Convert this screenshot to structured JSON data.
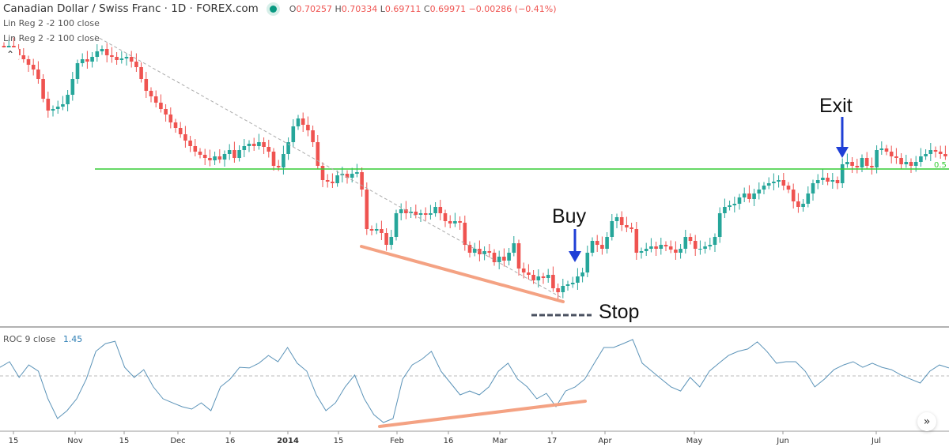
{
  "header": {
    "symbol": "Canadian Dollar / Swiss Franc · 1D · FOREX.com",
    "o_label": "O",
    "o": "0.70257",
    "h_label": "H",
    "h": "0.70334",
    "l_label": "L",
    "l": "0.69711",
    "c_label": "C",
    "c": "0.69971",
    "change": "−0.00286 (−0.41%)"
  },
  "indicators": {
    "linreg1": "Lin Reg 2 -2 100 close",
    "linreg2": "Lin Reg 2 -2 100 close",
    "roc_label": "ROC 9 close",
    "roc_value": "1.45"
  },
  "annotations": {
    "buy": "Buy",
    "exit": "Exit",
    "stop": "Stop",
    "level_label": "0.5"
  },
  "colors": {
    "up": "#26a69a",
    "down": "#ef5350",
    "roc": "#5b93b8",
    "level": "#33cc33",
    "trend": "#f4a283",
    "arrow": "#1f3fd6",
    "stop": "#4a5160"
  },
  "buttons": {
    "collapse_icon": "chevron-up-icon",
    "scroll_icon": "double-chevron-right-icon"
  },
  "chart_data": [
    {
      "type": "candlestick",
      "title": "Canadian Dollar / Swiss Franc · 1D · FOREX.com",
      "x_ticks": [
        "15",
        "Nov",
        "15",
        "Dec",
        "16",
        "2014",
        "15",
        "Feb",
        "16",
        "Mar",
        "17",
        "Apr",
        "May",
        "Jun",
        "Jul"
      ],
      "ylim": [
        0.8052,
        0.888
      ],
      "closes": [
        0.876,
        0.8764,
        0.8756,
        0.874,
        0.873,
        0.8716,
        0.8704,
        0.868,
        0.863,
        0.86,
        0.8604,
        0.861,
        0.8616,
        0.864,
        0.868,
        0.872,
        0.873,
        0.8724,
        0.8736,
        0.875,
        0.8756,
        0.874,
        0.8736,
        0.8728,
        0.8732,
        0.8736,
        0.8724,
        0.871,
        0.868,
        0.865,
        0.8636,
        0.862,
        0.8604,
        0.859,
        0.857,
        0.8556,
        0.854,
        0.8524,
        0.851,
        0.8496,
        0.8488,
        0.848,
        0.8474,
        0.8484,
        0.8476,
        0.849,
        0.85,
        0.848,
        0.85,
        0.851,
        0.8516,
        0.851,
        0.852,
        0.8508,
        0.8496,
        0.846,
        0.8456,
        0.849,
        0.852,
        0.856,
        0.858,
        0.8564,
        0.855,
        0.852,
        0.846,
        0.8424,
        0.842,
        0.8416,
        0.8436,
        0.844,
        0.843,
        0.844,
        0.8444,
        0.84,
        0.83,
        0.8296,
        0.83,
        0.829,
        0.826,
        0.828,
        0.834,
        0.835,
        0.834,
        0.8344,
        0.8336,
        0.834,
        0.8336,
        0.834,
        0.8356,
        0.834,
        0.832,
        0.8314,
        0.832,
        0.8316,
        0.826,
        0.824,
        0.825,
        0.8236,
        0.8244,
        0.824,
        0.8216,
        0.823,
        0.822,
        0.824,
        0.8264,
        0.82,
        0.819,
        0.8184,
        0.817,
        0.818,
        0.8176,
        0.8184,
        0.815,
        0.814,
        0.8156,
        0.816,
        0.8164,
        0.818,
        0.819,
        0.824,
        0.827,
        0.826,
        0.825,
        0.828,
        0.832,
        0.833,
        0.831,
        0.8304,
        0.83,
        0.824,
        0.8244,
        0.825,
        0.8256,
        0.825,
        0.826,
        0.8256,
        0.8248,
        0.824,
        0.825,
        0.828,
        0.827,
        0.825,
        0.825,
        0.8256,
        0.826,
        0.828,
        0.834,
        0.8356,
        0.836,
        0.8364,
        0.838,
        0.839,
        0.8376,
        0.839,
        0.84,
        0.841,
        0.8416,
        0.842,
        0.8424,
        0.841,
        0.84,
        0.837,
        0.8356,
        0.8364,
        0.839,
        0.8416,
        0.8424,
        0.843,
        0.842,
        0.8424,
        0.8416,
        0.8464,
        0.847,
        0.846,
        0.8456,
        0.848,
        0.846,
        0.8456,
        0.85,
        0.8504,
        0.8496,
        0.8484,
        0.848,
        0.8464,
        0.847,
        0.846,
        0.847,
        0.8484,
        0.849,
        0.85,
        0.8496,
        0.849,
        0.8484
      ]
    },
    {
      "type": "line",
      "title": "ROC 9 close",
      "ylim": [
        -4.5,
        4
      ],
      "zero_line": true,
      "values": [
        0.73,
        1.2,
        -0.13,
        0.93,
        0.4,
        -1.93,
        -3.6,
        -2.93,
        -1.93,
        -0.27,
        2.07,
        2.73,
        2.93,
        0.73,
        -0.13,
        0.53,
        -0.93,
        -1.93,
        -2.27,
        -2.6,
        -2.8,
        -2.27,
        -2.93,
        -0.93,
        -0.27,
        0.73,
        0.67,
        1.07,
        1.73,
        1.2,
        2.4,
        1.07,
        0.4,
        -1.6,
        -2.93,
        -2.27,
        -0.93,
        0.07,
        -1.93,
        -3.27,
        -3.93,
        -3.6,
        -0.27,
        0.93,
        1.4,
        2.07,
        0.4,
        -0.6,
        -1.6,
        -1.27,
        -1.6,
        -0.93,
        0.4,
        1.07,
        -0.27,
        -0.93,
        -1.93,
        -1.47,
        -2.6,
        -1.27,
        -0.93,
        -0.27,
        1.07,
        2.4,
        2.4,
        2.73,
        3.07,
        1.07,
        0.4,
        -0.27,
        -0.93,
        -1.27,
        -0.13,
        -0.93,
        0.4,
        1.07,
        1.73,
        2.07,
        2.27,
        2.87,
        2.07,
        1.07,
        1.2,
        1.2,
        0.4,
        -0.93,
        -0.27,
        0.53,
        0.93,
        1.2,
        0.73,
        1.07,
        0.73,
        0.53,
        0.07,
        -0.27,
        -0.6,
        0.4,
        0.93,
        0.67
      ]
    }
  ]
}
